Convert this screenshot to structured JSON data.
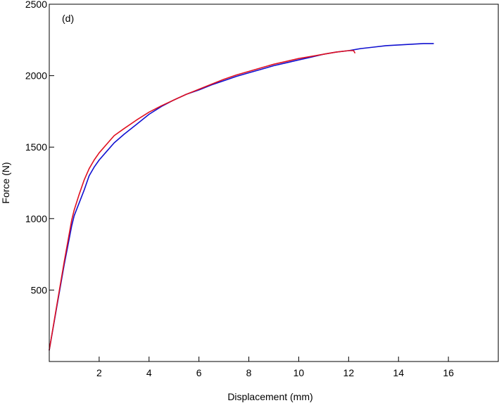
{
  "chart_data": {
    "type": "line",
    "panel_label": "(d)",
    "title": "",
    "xlabel": "Displacement (mm)",
    "ylabel": "Force (N)",
    "xlim": [
      0,
      18
    ],
    "ylim": [
      0,
      2500
    ],
    "xticks": [
      2,
      4,
      6,
      8,
      10,
      12,
      14,
      16
    ],
    "xtick_labels": [
      "2",
      "4",
      "6",
      "8",
      "10",
      "12",
      "14",
      "16"
    ],
    "yticks": [
      500,
      1000,
      1500,
      2000,
      2500
    ],
    "ytick_labels": [
      "500",
      "1000",
      "1500",
      "2000",
      "2500"
    ],
    "grid": false,
    "legend": "none",
    "series": [
      {
        "color": "#1010d0",
        "x": [
          0,
          0.3,
          0.6,
          0.9,
          1.0,
          1.2,
          1.4,
          1.6,
          1.8,
          2.0,
          2.3,
          2.6,
          3.0,
          3.5,
          4.0,
          4.5,
          5.0,
          5.5,
          6.0,
          6.5,
          7.0,
          7.5,
          8.0,
          8.5,
          9.0,
          9.5,
          10.0,
          10.5,
          11.0,
          11.5,
          12.0,
          12.5,
          13.0,
          13.5,
          14.0,
          14.5,
          15.0,
          15.4
        ],
        "y": [
          80,
          380,
          680,
          950,
          1020,
          1110,
          1200,
          1300,
          1360,
          1410,
          1470,
          1530,
          1590,
          1660,
          1730,
          1785,
          1830,
          1870,
          1900,
          1935,
          1965,
          1995,
          2020,
          2045,
          2070,
          2090,
          2110,
          2130,
          2150,
          2165,
          2175,
          2190,
          2200,
          2210,
          2215,
          2220,
          2225,
          2225
        ]
      },
      {
        "color": "#e01020",
        "x": [
          0,
          0.3,
          0.6,
          0.9,
          1.0,
          1.2,
          1.4,
          1.6,
          1.8,
          2.0,
          2.3,
          2.6,
          3.0,
          3.5,
          4.0,
          4.5,
          5.0,
          5.5,
          6.0,
          6.5,
          7.0,
          7.5,
          8.0,
          8.5,
          9.0,
          9.5,
          10.0,
          10.5,
          11.0,
          11.5,
          12.0,
          12.2,
          12.25
        ],
        "y": [
          80,
          390,
          700,
          990,
          1060,
          1170,
          1270,
          1350,
          1410,
          1460,
          1520,
          1580,
          1630,
          1690,
          1745,
          1790,
          1830,
          1870,
          1905,
          1940,
          1975,
          2005,
          2030,
          2055,
          2080,
          2100,
          2120,
          2135,
          2150,
          2165,
          2175,
          2175,
          2160
        ]
      }
    ]
  }
}
